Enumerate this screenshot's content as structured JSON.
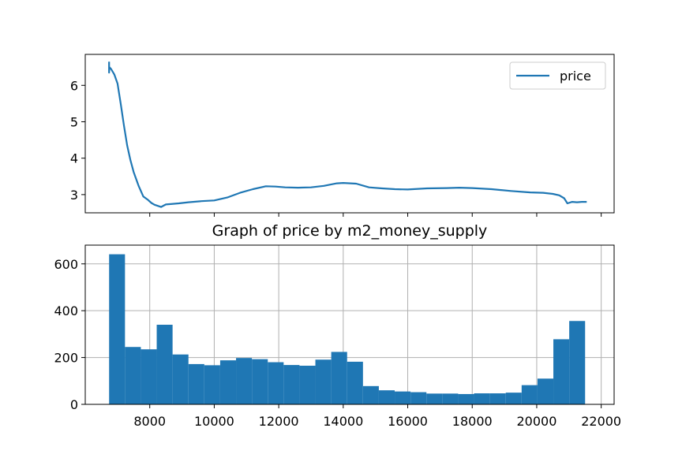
{
  "chart_data": [
    {
      "type": "line",
      "title": "",
      "xlabel": "",
      "ylabel": "",
      "xlim": [
        6000,
        22400
      ],
      "ylim": [
        2.5,
        6.85
      ],
      "yticks": [
        3,
        4,
        5,
        6
      ],
      "ytick_labels": [
        "3",
        "4",
        "5",
        "6"
      ],
      "xticks": [
        8000,
        10000,
        12000,
        14000,
        16000,
        18000,
        20000,
        22000
      ],
      "grid": false,
      "legend": "upper-right",
      "series": [
        {
          "name": "price",
          "color": "#1f77b4",
          "x": [
            6740,
            6740,
            6750,
            6800,
            6900,
            7000,
            7100,
            7200,
            7300,
            7400,
            7500,
            7650,
            7800,
            7950,
            8050,
            8150,
            8250,
            8350,
            8500,
            8650,
            8900,
            9200,
            9600,
            10000,
            10400,
            10800,
            11200,
            11600,
            11900,
            12200,
            12600,
            13000,
            13400,
            13800,
            14000,
            14400,
            14800,
            15200,
            15600,
            16000,
            16600,
            17200,
            17600,
            18000,
            18600,
            19200,
            19800,
            20200,
            20500,
            20700,
            20850,
            20950,
            21100,
            21250,
            21400,
            21550
          ],
          "y": [
            6.65,
            6.35,
            6.5,
            6.45,
            6.3,
            6.05,
            5.5,
            4.9,
            4.35,
            3.95,
            3.62,
            3.25,
            2.95,
            2.85,
            2.77,
            2.72,
            2.69,
            2.66,
            2.73,
            2.74,
            2.76,
            2.79,
            2.82,
            2.84,
            2.92,
            3.05,
            3.15,
            3.23,
            3.22,
            3.2,
            3.19,
            3.2,
            3.24,
            3.31,
            3.32,
            3.3,
            3.2,
            3.17,
            3.15,
            3.14,
            3.17,
            3.18,
            3.19,
            3.18,
            3.15,
            3.1,
            3.06,
            3.05,
            3.02,
            2.98,
            2.9,
            2.76,
            2.8,
            2.79,
            2.8,
            2.8
          ]
        }
      ]
    },
    {
      "type": "bar",
      "title": "Graph of price by m2_money_supply",
      "xlabel": "",
      "ylabel": "",
      "xlim": [
        6000,
        22400
      ],
      "ylim": [
        0,
        680
      ],
      "xticks": [
        8000,
        10000,
        12000,
        14000,
        16000,
        18000,
        20000,
        22000
      ],
      "xtick_labels": [
        "8000",
        "10000",
        "12000",
        "14000",
        "16000",
        "18000",
        "20000",
        "22000"
      ],
      "yticks": [
        0,
        200,
        400,
        600
      ],
      "ytick_labels": [
        "0",
        "200",
        "400",
        "600"
      ],
      "grid": true,
      "color": "#1f77b4",
      "bin_edges": [
        6740,
        7232,
        7724,
        8216,
        8708,
        9200,
        9692,
        10184,
        10676,
        11168,
        11660,
        12152,
        12644,
        13136,
        13628,
        14120,
        14612,
        15104,
        15596,
        16088,
        16580,
        17072,
        17564,
        18056,
        18548,
        19040,
        19532,
        20024,
        20516,
        21008,
        21500
      ],
      "values": [
        641,
        245,
        235,
        340,
        213,
        172,
        167,
        188,
        198,
        193,
        180,
        168,
        165,
        191,
        224,
        182,
        78,
        60,
        55,
        52,
        46,
        46,
        44,
        47,
        47,
        50,
        82,
        110,
        278,
        356
      ]
    }
  ]
}
